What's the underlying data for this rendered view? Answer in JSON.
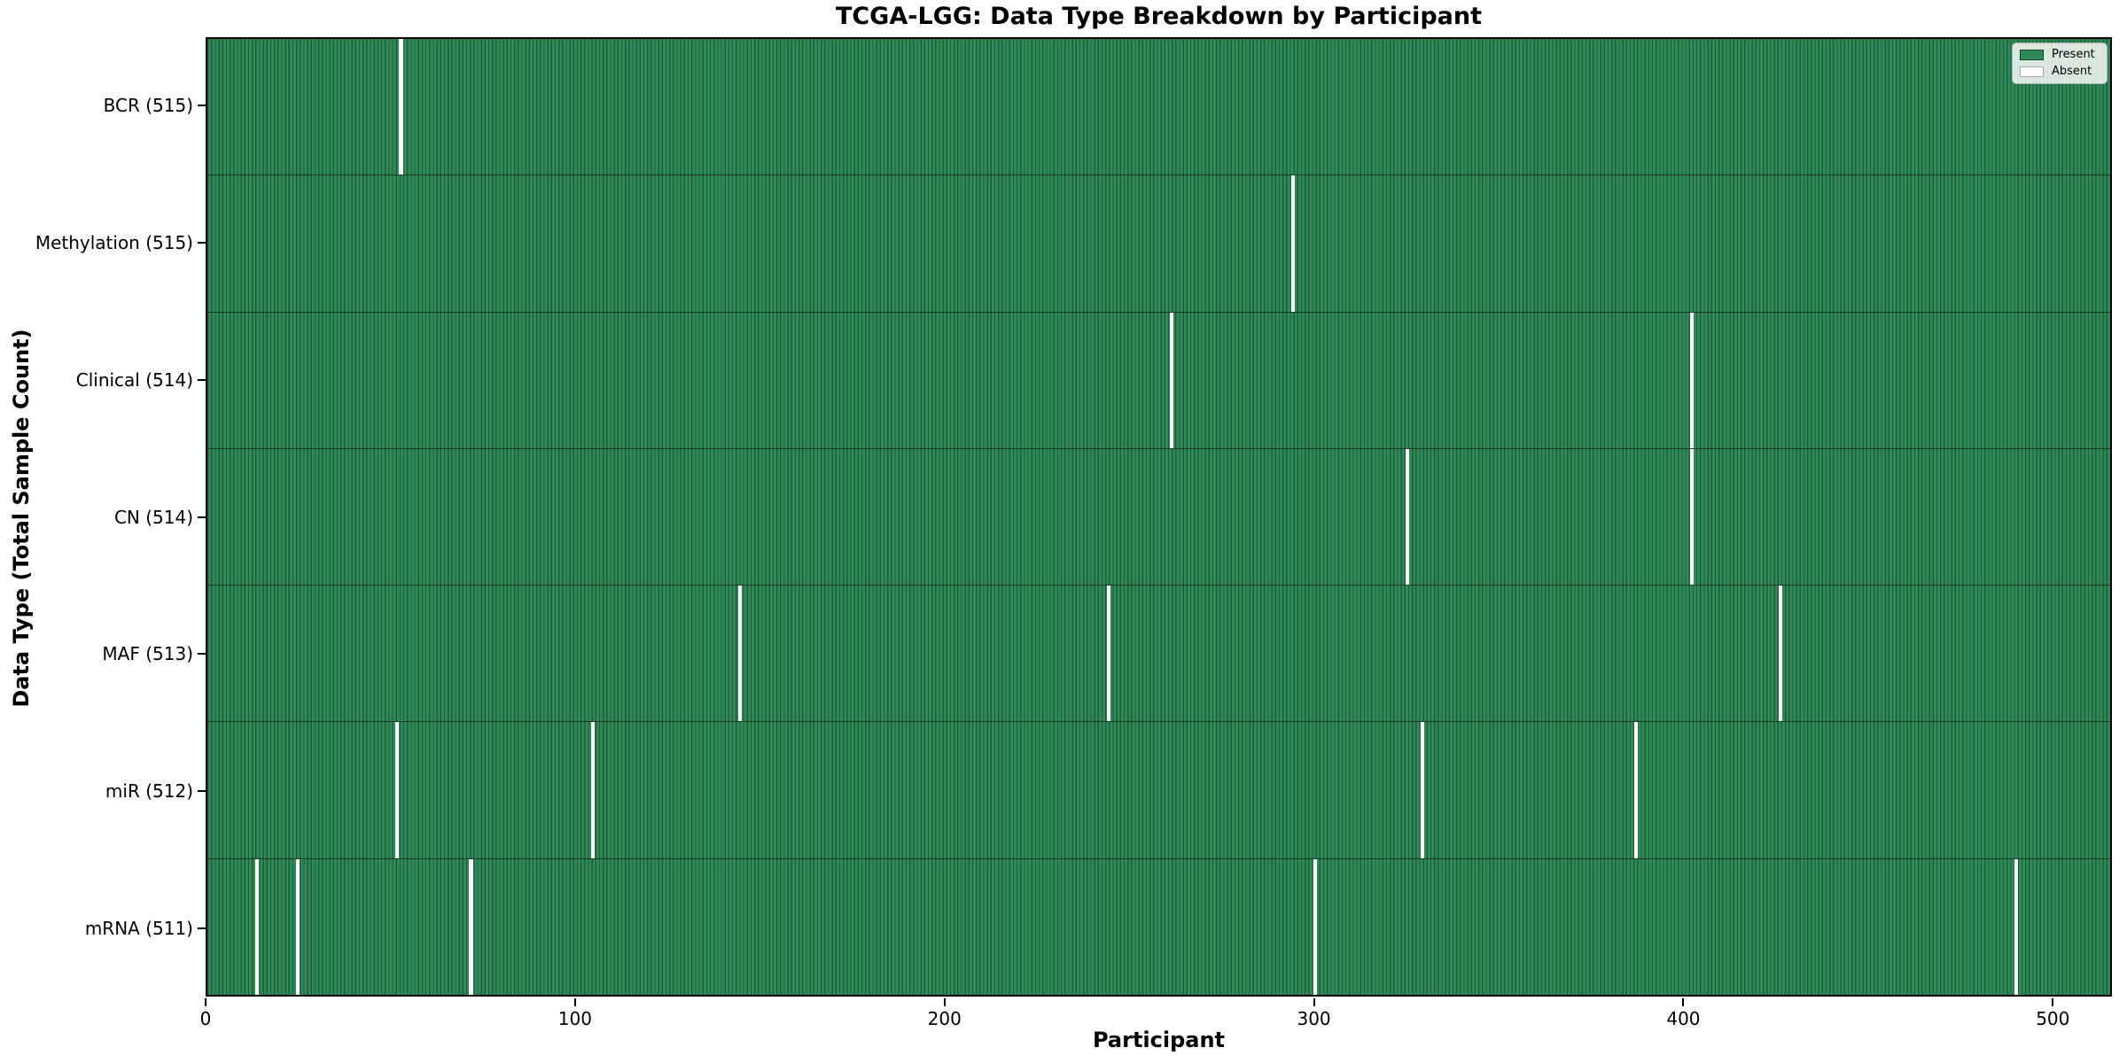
{
  "colors": {
    "present": "#2e8b57",
    "absent": "#ffffff",
    "cell_edge": "#1d5c38",
    "frame": "#000000",
    "text": "#000000"
  },
  "chart_data": {
    "type": "heatmap",
    "title": "TCGA-LGG: Data Type Breakdown by Participant",
    "xlabel": "Participant",
    "ylabel": "Data Type (Total Sample Count)",
    "x_range": [
      0,
      516
    ],
    "n_participants": 516,
    "x_ticks": [
      0,
      100,
      200,
      300,
      400,
      500
    ],
    "grid": false,
    "legend_position": "upper-right",
    "legend": [
      {
        "label": "Present",
        "color": "#2e8b57"
      },
      {
        "label": "Absent",
        "color": "#ffffff"
      }
    ],
    "rows": [
      {
        "name": "bcr",
        "label": "BCR (515)",
        "present_count": 515,
        "absent_count": 1,
        "absent_participants": [
          52
        ]
      },
      {
        "name": "methylation",
        "label": "Methylation (515)",
        "present_count": 515,
        "absent_count": 1,
        "absent_participants": [
          294
        ]
      },
      {
        "name": "clinical",
        "label": "Clinical (514)",
        "present_count": 514,
        "absent_count": 2,
        "absent_participants": [
          261,
          402
        ]
      },
      {
        "name": "cn",
        "label": "CN (514)",
        "present_count": 514,
        "absent_count": 2,
        "absent_participants": [
          325,
          402
        ]
      },
      {
        "name": "maf",
        "label": "MAF (513)",
        "present_count": 513,
        "absent_count": 3,
        "absent_participants": [
          144,
          244,
          426
        ]
      },
      {
        "name": "mir",
        "label": "miR (512)",
        "present_count": 512,
        "absent_count": 4,
        "absent_participants": [
          51,
          104,
          329,
          387
        ]
      },
      {
        "name": "mrna",
        "label": "mRNA (511)",
        "present_count": 511,
        "absent_count": 5,
        "absent_participants": [
          13,
          24,
          71,
          300,
          490
        ]
      }
    ]
  }
}
